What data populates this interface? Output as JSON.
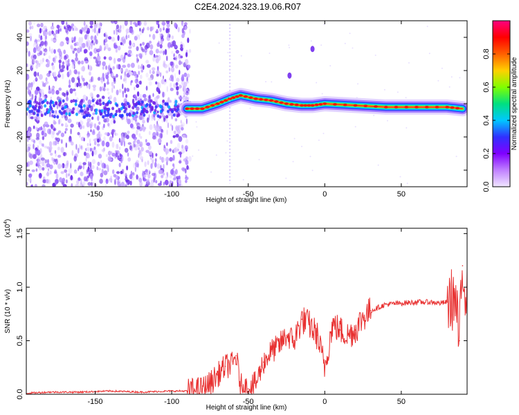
{
  "page": {
    "title": "C2E4.2024.323.19.06.R07"
  },
  "chart_data": [
    {
      "type": "heatmap",
      "xlabel": "Height of straight line (km)",
      "ylabel": "Frequency (Hz)",
      "xlim": [
        -195,
        93
      ],
      "ylim": [
        -50,
        50
      ],
      "xticks": [
        -150,
        -100,
        -50,
        0,
        50
      ],
      "yticks": [
        -40,
        -20,
        0,
        20,
        40
      ],
      "colorbar": {
        "label": "Normalized spectral amplitude",
        "range": [
          0,
          1
        ],
        "ticks": [
          0.0,
          0.2,
          0.4,
          0.6,
          0.8
        ],
        "tick_labels": [
          "0.0",
          "0.2",
          "0.4",
          "0.6",
          "0.8"
        ],
        "colormap": [
          "#f0e6ff",
          "#c080ff",
          "#8000ff",
          "#3030ff",
          "#00c8ff",
          "#00e080",
          "#80ff00",
          "#ffd000",
          "#ff6000",
          "#ff0000",
          "#ff0080"
        ]
      },
      "ridge": {
        "x": [
          -90,
          -80,
          -70,
          -62,
          -55,
          -45,
          -35,
          -25,
          -15,
          -8,
          0,
          20,
          40,
          60,
          80,
          90
        ],
        "y": [
          -3,
          -3,
          0,
          3,
          5,
          3,
          2,
          0,
          -1,
          -1,
          0,
          -1,
          -2,
          -2,
          -2,
          -3
        ]
      },
      "features": [
        {
          "x": -8,
          "y": 33
        },
        {
          "x": -23,
          "y": 17
        }
      ]
    },
    {
      "type": "line",
      "xlabel": "Height of straight line (km)",
      "ylabel": "SNR (10 * v/v)",
      "scale_label": "(x10",
      "scale_exp": "4",
      "xlim": [
        -195,
        93
      ],
      "ylim": [
        0,
        1.55
      ],
      "xticks": [
        -150,
        -100,
        -50,
        0,
        50
      ],
      "yticks": [
        0.0,
        0.5,
        1.0,
        1.5
      ],
      "ytick_labels": [
        "0.0",
        "0.5",
        "1.0",
        "1.5"
      ],
      "series": [
        {
          "color": "#e83030",
          "x": [
            -195,
            -180,
            -160,
            -140,
            -120,
            -100,
            -90,
            -80,
            -75,
            -70,
            -65,
            -60,
            -58,
            -55,
            -50,
            -45,
            -40,
            -35,
            -30,
            -25,
            -20,
            -15,
            -10,
            -5,
            0,
            5,
            10,
            15,
            20,
            25,
            30,
            40,
            50,
            60,
            70,
            75,
            80,
            85,
            88,
            90,
            93
          ],
          "y": [
            0.01,
            0.02,
            0.02,
            0.03,
            0.02,
            0.03,
            0.03,
            0.05,
            0.1,
            0.18,
            0.26,
            0.28,
            0.36,
            0.08,
            0.05,
            0.1,
            0.3,
            0.4,
            0.45,
            0.55,
            0.5,
            0.7,
            0.65,
            0.55,
            0.25,
            0.65,
            0.6,
            0.55,
            0.6,
            0.72,
            0.78,
            0.84,
            0.85,
            0.86,
            0.86,
            0.85,
            0.86,
            0.9,
            0.5,
            1.2,
            0.9
          ]
        }
      ]
    }
  ]
}
